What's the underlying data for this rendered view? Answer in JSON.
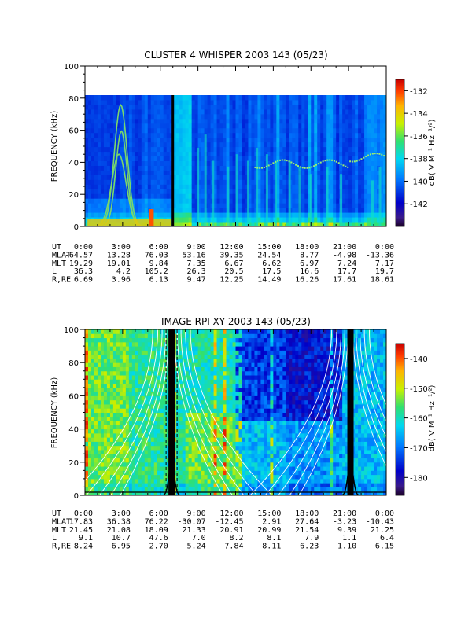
{
  "chart_data": [
    {
      "type": "heatmap",
      "title": "CLUSTER 4 WHISPER 2003 143 (05/23)",
      "ylabel": "FREQUENCY (kHz)",
      "ylim": [
        0,
        100
      ],
      "y_ticks": [
        "0",
        "20",
        "40",
        "60",
        "80",
        "100"
      ],
      "data_y_max": 80,
      "colorbar": {
        "label": "dB( V M⁻¹ Hz⁻¹/²)",
        "range": [
          -144,
          -131
        ],
        "ticks": [
          "-132",
          "-134",
          "-136",
          "-138",
          "-140",
          "-142"
        ]
      },
      "x_ticks": [
        "0:00",
        "3:00",
        "6:00",
        "9:00",
        "12:00",
        "15:00",
        "18:00",
        "21:00",
        "0:00"
      ],
      "black_gap_hours": 7.0,
      "ephemeris": [
        {
          "label": "UT",
          "values": [
            "0:00",
            "3:00",
            "6:00",
            "9:00",
            "12:00",
            "15:00",
            "18:00",
            "21:00",
            "0:00"
          ]
        },
        {
          "label": "MLAT",
          "values": [
            "-64.57",
            "13.28",
            "76.03",
            "53.16",
            "39.35",
            "24.54",
            "8.77",
            "-4.98",
            "-13.36"
          ]
        },
        {
          "label": "MLT",
          "values": [
            "19.29",
            "19.01",
            "9.84",
            "7.35",
            "6.67",
            "6.62",
            "6.97",
            "7.24",
            "7.17"
          ]
        },
        {
          "label": "L",
          "values": [
            "36.3",
            "4.2",
            "105.2",
            "26.3",
            "20.5",
            "17.5",
            "16.6",
            "17.7",
            "19.7"
          ]
        },
        {
          "label": "R,RE",
          "values": [
            "6.69",
            "3.96",
            "6.13",
            "9.47",
            "12.25",
            "14.49",
            "16.26",
            "17.61",
            "18.61"
          ]
        }
      ]
    },
    {
      "type": "heatmap",
      "title": "IMAGE RPI XY 2003 143 (05/23)",
      "ylabel": "FREQUENCY (kHz)",
      "ylim": [
        0,
        100
      ],
      "y_ticks": [
        "0",
        "20",
        "40",
        "60",
        "80",
        "100"
      ],
      "data_y_max": 100,
      "colorbar": {
        "label": "dB( V M⁻¹ Hz⁻¹/²)",
        "range": [
          -186,
          -135
        ],
        "ticks": [
          "-140",
          "-150",
          "-160",
          "-170",
          "-180"
        ]
      },
      "x_ticks": [
        "0:00",
        "3:00",
        "6:00",
        "9:00",
        "12:00",
        "15:00",
        "18:00",
        "21:00",
        "0:00"
      ],
      "perigee_hours": [
        6.9,
        21.15
      ],
      "ephemeris": [
        {
          "label": "UT",
          "values": [
            "0:00",
            "3:00",
            "6:00",
            "9:00",
            "12:00",
            "15:00",
            "18:00",
            "21:00",
            "0:00"
          ]
        },
        {
          "label": "MLAT",
          "values": [
            "17.83",
            "36.38",
            "76.22",
            "-30.07",
            "-12.45",
            "2.91",
            "27.64",
            "-3.23",
            "-10.43"
          ]
        },
        {
          "label": "MLT",
          "values": [
            "21.45",
            "21.08",
            "18.09",
            "21.33",
            "20.91",
            "20.99",
            "21.54",
            "9.39",
            "21.25"
          ]
        },
        {
          "label": "L",
          "values": [
            "9.1",
            "10.7",
            "47.6",
            "7.0",
            "8.2",
            "8.1",
            "7.9",
            "1.1",
            "6.4"
          ]
        },
        {
          "label": "R,RE",
          "values": [
            "8.24",
            "6.95",
            "2.70",
            "5.24",
            "7.84",
            "8.11",
            "6.23",
            "1.10",
            "6.15"
          ]
        }
      ]
    }
  ]
}
